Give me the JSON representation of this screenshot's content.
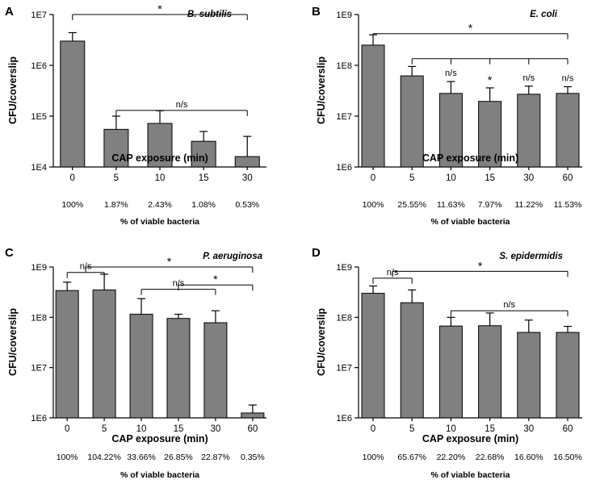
{
  "style": {
    "bar_fill": "#808080",
    "bar_stroke": "#000000",
    "axis_color": "#000000"
  },
  "chart_data": [
    {
      "panel": "A",
      "species": "B. subtilis",
      "type": "bar",
      "categories": [
        "0",
        "5",
        "10",
        "15",
        "30"
      ],
      "values": [
        3000000,
        55000,
        72000,
        32000,
        16000
      ],
      "errors_upper": [
        4400000,
        100000,
        128000,
        50000,
        40000
      ],
      "yscale": "log",
      "ylim": [
        10000,
        10000000
      ],
      "yticks": [
        "1E4",
        "1E5",
        "1E6",
        "1E7"
      ],
      "ylabel": "CFU/coverslip",
      "xlabel": "CAP exposure (min)",
      "viability": [
        "100%",
        "1.87%",
        "2.43%",
        "1.08%",
        "0.53%"
      ],
      "viability_label": "% of viable bacteria",
      "annotations": [
        {
          "from": 0,
          "to": 4,
          "level": 10000000,
          "label": "*",
          "drops": [
            1,
            1
          ]
        },
        {
          "from": 1,
          "to": 4,
          "level": 130000,
          "label": "n/s",
          "drops": [
            1,
            1
          ]
        }
      ],
      "bar_labels": []
    },
    {
      "panel": "B",
      "species": "E. coli",
      "type": "bar",
      "categories": [
        "0",
        "5",
        "10",
        "15",
        "30",
        "60"
      ],
      "values": [
        250000000,
        62000000,
        28000000,
        19500000,
        27000000,
        28000000
      ],
      "errors_upper": [
        400000000,
        95000000,
        48000000,
        36000000,
        39000000,
        38000000
      ],
      "yscale": "log",
      "ylim": [
        1000000,
        1000000000
      ],
      "yticks": [
        "1E6",
        "1E7",
        "1E8",
        "1E9"
      ],
      "ylabel": "CFU/coverslip",
      "xlabel": "CAP exposure (min)",
      "viability": [
        "100%",
        "25.55%",
        "11.63%",
        "7.97%",
        "11.22%",
        "11.53%"
      ],
      "viability_label": "% of viable bacteria",
      "annotations": [
        {
          "from": 0,
          "to": 5,
          "level": 420000000,
          "label": "*",
          "drops": [
            1,
            1
          ]
        },
        {
          "from": 1,
          "to": 5,
          "level": 135000000,
          "label": "",
          "drops": [
            1,
            1,
            1,
            1,
            1
          ]
        }
      ],
      "bar_labels": [
        {
          "index": 2,
          "label": "n/s"
        },
        {
          "index": 3,
          "label": "*"
        },
        {
          "index": 4,
          "label": "n/s"
        },
        {
          "index": 5,
          "label": "n/s"
        }
      ]
    },
    {
      "panel": "C",
      "species": "P. aeruginosa",
      "type": "bar",
      "categories": [
        "0",
        "5",
        "10",
        "15",
        "30",
        "60"
      ],
      "values": [
        340000000,
        350000000,
        115000000,
        95000000,
        78000000,
        1250000
      ],
      "errors_upper": [
        500000000,
        720000000,
        235000000,
        115000000,
        135000000,
        1800000
      ],
      "yscale": "log",
      "ylim": [
        1000000,
        1000000000
      ],
      "yticks": [
        "1E6",
        "1E7",
        "1E8",
        "1E9"
      ],
      "ylabel": "CFU/coverslip",
      "xlabel": "CAP exposure (min)",
      "viability": [
        "100%",
        "104.22%",
        "33.66%",
        "26.85%",
        "22.87%",
        "0.35%"
      ],
      "viability_label": "% of viable bacteria",
      "annotations": [
        {
          "from": 0.5,
          "to": 5,
          "level": 1000000000,
          "label": "*",
          "drops": [
            1,
            1
          ]
        },
        {
          "from": 0,
          "to": 1,
          "level": 780000000,
          "label": "n/s",
          "drops": [
            1,
            1
          ]
        },
        {
          "from": 2,
          "to": 4,
          "level": 360000000,
          "label": "n/s",
          "drops": [
            1,
            1
          ]
        },
        {
          "from": 3,
          "to": 5,
          "level": 440000000,
          "label": "*",
          "drops": [
            1,
            1
          ]
        }
      ],
      "bar_labels": []
    },
    {
      "panel": "D",
      "species": "S. epidermidis",
      "type": "bar",
      "categories": [
        "0",
        "5",
        "10",
        "15",
        "30",
        "60"
      ],
      "values": [
        300000000,
        195000000,
        67000000,
        68000000,
        50000000,
        50000000
      ],
      "errors_upper": [
        420000000,
        350000000,
        100000000,
        122000000,
        88000000,
        66000000
      ],
      "yscale": "log",
      "ylim": [
        1000000,
        1000000000
      ],
      "yticks": [
        "1E6",
        "1E7",
        "1E8",
        "1E9"
      ],
      "ylabel": "CFU/coverslip",
      "xlabel": "CAP exposure (min)",
      "viability": [
        "100%",
        "65.67%",
        "22.20%",
        "22.68%",
        "16.60%",
        "16.50%"
      ],
      "viability_label": "% of viable bacteria",
      "annotations": [
        {
          "from": 0.5,
          "to": 5,
          "level": 820000000,
          "label": "*",
          "drops": [
            1,
            1
          ]
        },
        {
          "from": 0,
          "to": 1,
          "level": 600000000,
          "label": "n/s",
          "drops": [
            1,
            1
          ]
        },
        {
          "from": 2,
          "to": 5,
          "level": 135000000,
          "label": "n/s",
          "drops": [
            1,
            1
          ]
        }
      ],
      "bar_labels": []
    }
  ]
}
